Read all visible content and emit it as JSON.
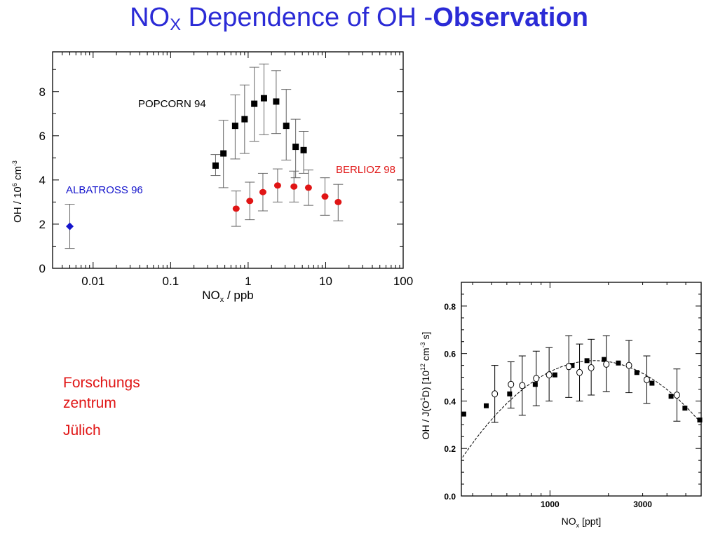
{
  "title": {
    "prefix": "NO",
    "subscript": "X",
    "middle": " Dependence of OH -",
    "bold": "Observation"
  },
  "side_note": {
    "lines": [
      "Forschungs",
      "zentrum",
      "Jülich"
    ]
  },
  "colors": {
    "title": "#2b2bd6",
    "berlioz": "#e01515",
    "albatross": "#1515cc",
    "popcorn": "#000000",
    "errorbar": "#666666",
    "note": "#e01515"
  },
  "chart_data": [
    {
      "type": "scatter",
      "title": "",
      "xlabel": "NO_x / ppb",
      "ylabel": "OH / 10^6 cm^-3",
      "xscale": "log",
      "xlim": [
        0.003,
        100
      ],
      "ylim": [
        0,
        9.8
      ],
      "x_tick_labels": [
        "0.01",
        "0.1",
        "1",
        "10",
        "100"
      ],
      "x_ticks": [
        0.01,
        0.1,
        1,
        10,
        100
      ],
      "y_tick_labels": [
        "0",
        "2",
        "4",
        "6",
        "8"
      ],
      "y_ticks": [
        0,
        2,
        4,
        6,
        8
      ],
      "grid": false,
      "series": [
        {
          "name": "ALBATROSS 96",
          "marker": "diamond",
          "color": "#1515cc",
          "points": [
            {
              "x": 0.005,
              "y": 1.9,
              "lo": 0.9,
              "hi": 2.9
            }
          ]
        },
        {
          "name": "POPCORN 94",
          "marker": "square",
          "color": "#000000",
          "points": [
            {
              "x": 0.38,
              "y": 4.65,
              "lo": 4.2,
              "hi": 5.15
            },
            {
              "x": 0.48,
              "y": 5.2,
              "lo": 3.65,
              "hi": 6.7
            },
            {
              "x": 0.68,
              "y": 6.45,
              "lo": 4.95,
              "hi": 7.85
            },
            {
              "x": 0.9,
              "y": 6.75,
              "lo": 5.2,
              "hi": 8.3
            },
            {
              "x": 1.2,
              "y": 7.45,
              "lo": 5.75,
              "hi": 9.1
            },
            {
              "x": 1.6,
              "y": 7.7,
              "lo": 6.05,
              "hi": 9.25
            },
            {
              "x": 2.3,
              "y": 7.55,
              "lo": 6.1,
              "hi": 8.95
            },
            {
              "x": 3.1,
              "y": 6.45,
              "lo": 4.9,
              "hi": 8.1
            },
            {
              "x": 4.1,
              "y": 5.5,
              "lo": 4.1,
              "hi": 6.75
            },
            {
              "x": 5.2,
              "y": 5.35,
              "lo": 4.3,
              "hi": 6.2
            }
          ]
        },
        {
          "name": "BERLIOZ 98",
          "marker": "circle",
          "color": "#e01515",
          "points": [
            {
              "x": 0.7,
              "y": 2.7,
              "lo": 1.9,
              "hi": 3.5
            },
            {
              "x": 1.05,
              "y": 3.05,
              "lo": 2.2,
              "hi": 3.9
            },
            {
              "x": 1.55,
              "y": 3.45,
              "lo": 2.6,
              "hi": 4.3
            },
            {
              "x": 2.4,
              "y": 3.75,
              "lo": 3.0,
              "hi": 4.5
            },
            {
              "x": 3.9,
              "y": 3.7,
              "lo": 3.0,
              "hi": 4.4
            },
            {
              "x": 6.0,
              "y": 3.65,
              "lo": 2.85,
              "hi": 4.45
            },
            {
              "x": 9.8,
              "y": 3.25,
              "lo": 2.4,
              "hi": 4.1
            },
            {
              "x": 14.5,
              "y": 3.0,
              "lo": 2.15,
              "hi": 3.8
            }
          ]
        }
      ]
    },
    {
      "type": "scatter",
      "title": "",
      "xlabel": "NO_x [ppt]",
      "ylabel": "OH / J(O^1D) [10^12 cm^-3 s]",
      "xscale": "log",
      "xlim": [
        350,
        6000
      ],
      "ylim": [
        0,
        0.9
      ],
      "x_tick_labels": [
        "1000",
        "3000"
      ],
      "x_ticks": [
        1000,
        3000
      ],
      "y_tick_labels": [
        "0.0",
        "0.2",
        "0.4",
        "0.6",
        "0.8"
      ],
      "y_ticks": [
        0,
        0.2,
        0.4,
        0.6,
        0.8
      ],
      "grid": false,
      "fit_curve": {
        "type": "quadratic-in-log",
        "peak_x": 1700,
        "peak_y": 0.57,
        "endpoint_x": 5800,
        "endpoint_y": 0.32
      },
      "series": [
        {
          "marker": "square",
          "color": "#000000",
          "points": [
            {
              "x": 360,
              "y": 0.345
            },
            {
              "x": 470,
              "y": 0.38
            },
            {
              "x": 620,
              "y": 0.43
            },
            {
              "x": 840,
              "y": 0.47
            },
            {
              "x": 1060,
              "y": 0.51
            },
            {
              "x": 1300,
              "y": 0.55
            },
            {
              "x": 1550,
              "y": 0.57
            },
            {
              "x": 1900,
              "y": 0.575
            },
            {
              "x": 2250,
              "y": 0.56
            },
            {
              "x": 2800,
              "y": 0.52
            },
            {
              "x": 3350,
              "y": 0.475
            },
            {
              "x": 4200,
              "y": 0.42
            },
            {
              "x": 4950,
              "y": 0.37
            },
            {
              "x": 5900,
              "y": 0.32
            }
          ]
        },
        {
          "marker": "open-circle",
          "color": "#000000",
          "points": [
            {
              "x": 520,
              "y": 0.43,
              "lo": 0.31,
              "hi": 0.55
            },
            {
              "x": 630,
              "y": 0.47,
              "lo": 0.37,
              "hi": 0.565
            },
            {
              "x": 720,
              "y": 0.465,
              "lo": 0.34,
              "hi": 0.59
            },
            {
              "x": 850,
              "y": 0.495,
              "lo": 0.38,
              "hi": 0.61
            },
            {
              "x": 990,
              "y": 0.51,
              "lo": 0.4,
              "hi": 0.625
            },
            {
              "x": 1250,
              "y": 0.545,
              "lo": 0.415,
              "hi": 0.675
            },
            {
              "x": 1420,
              "y": 0.52,
              "lo": 0.4,
              "hi": 0.64
            },
            {
              "x": 1630,
              "y": 0.54,
              "lo": 0.425,
              "hi": 0.66
            },
            {
              "x": 1950,
              "y": 0.555,
              "lo": 0.44,
              "hi": 0.675
            },
            {
              "x": 2550,
              "y": 0.55,
              "lo": 0.435,
              "hi": 0.655
            },
            {
              "x": 3150,
              "y": 0.49,
              "lo": 0.39,
              "hi": 0.59
            },
            {
              "x": 4500,
              "y": 0.425,
              "lo": 0.315,
              "hi": 0.535
            }
          ]
        }
      ]
    }
  ]
}
